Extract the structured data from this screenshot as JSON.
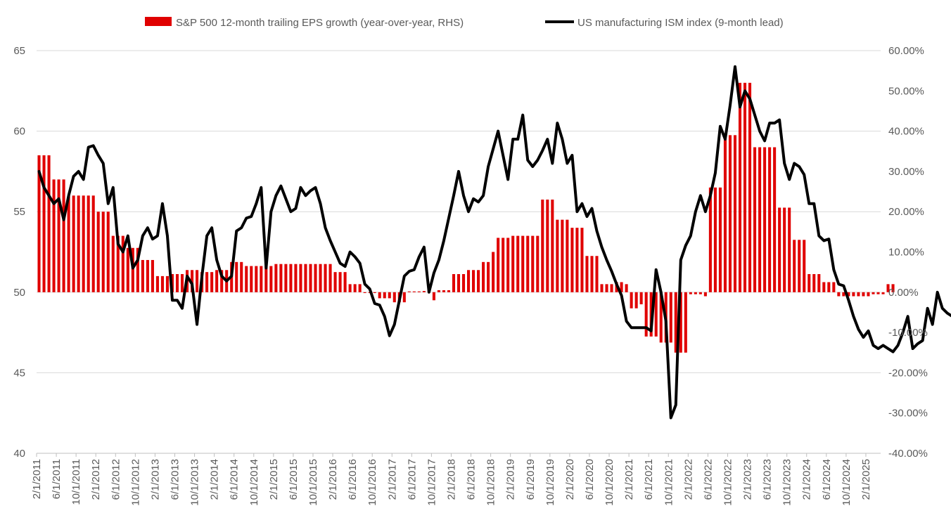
{
  "chart_data": {
    "type": "bar+line",
    "legend": {
      "placement": "top",
      "items": [
        {
          "label": "S&P 500 12-month trailing EPS growth (year-over-year, RHS)",
          "kind": "bar",
          "color": "#e00000"
        },
        {
          "label": "US manufacturing ISM index (9-month lead)",
          "kind": "line",
          "color": "#000000"
        }
      ]
    },
    "grid": true,
    "left_axis": {
      "ylim": [
        40,
        65
      ],
      "ticks": [
        "40",
        "45",
        "50",
        "55",
        "60",
        "65"
      ]
    },
    "right_axis": {
      "ylim": [
        -0.4,
        0.6
      ],
      "ticks": [
        "-40.00%",
        "-30.00%",
        "-20.00%",
        "-10.00%",
        "0.00%",
        "10.00%",
        "20.00%",
        "30.00%",
        "40.00%",
        "50.00%",
        "60.00%"
      ]
    },
    "x_start": "2011-02",
    "x_end": "2025-04",
    "x_tick_labels": [
      "2/1/2011",
      "6/1/2011",
      "10/1/2011",
      "2/1/2012",
      "6/1/2012",
      "10/1/2012",
      "2/1/2013",
      "6/1/2013",
      "10/1/2013",
      "2/1/2014",
      "6/1/2014",
      "10/1/2014",
      "2/1/2015",
      "6/1/2015",
      "10/1/2015",
      "2/1/2016",
      "6/1/2016",
      "10/1/2016",
      "2/1/2017",
      "6/1/2017",
      "10/1/2017",
      "2/1/2018",
      "6/1/2018",
      "10/1/2018",
      "2/1/2019",
      "6/1/2019",
      "10/1/2019",
      "2/1/2020",
      "6/1/2020",
      "10/1/2020",
      "2/1/2021",
      "6/1/2021",
      "10/1/2021",
      "2/1/2022",
      "6/1/2022",
      "10/1/2022",
      "2/1/2023",
      "6/1/2023",
      "10/1/2023",
      "2/1/2024",
      "6/1/2024",
      "10/1/2024",
      "2/1/2025"
    ],
    "series": [
      {
        "name": "S&P 500 12-month trailing EPS growth (year-over-year, RHS)",
        "type": "bar",
        "axis": "right",
        "values": [
          0.34,
          0.34,
          0.34,
          0.28,
          0.28,
          0.28,
          0.24,
          0.24,
          0.24,
          0.24,
          0.24,
          0.24,
          0.2,
          0.2,
          0.2,
          0.14,
          0.14,
          0.14,
          0.11,
          0.11,
          0.11,
          0.08,
          0.08,
          0.08,
          0.04,
          0.04,
          0.04,
          0.045,
          0.045,
          0.045,
          0.055,
          0.055,
          0.055,
          0.05,
          0.05,
          0.05,
          0.055,
          0.055,
          0.055,
          0.075,
          0.075,
          0.075,
          0.065,
          0.065,
          0.065,
          0.065,
          0.065,
          0.065,
          0.07,
          0.07,
          0.07,
          0.07,
          0.07,
          0.07,
          0.07,
          0.07,
          0.07,
          0.07,
          0.07,
          0.07,
          0.05,
          0.05,
          0.05,
          0.02,
          0.02,
          0.02,
          -0.002,
          -0.002,
          -0.002,
          -0.015,
          -0.015,
          -0.015,
          -0.025,
          -0.025,
          -0.025,
          0.002,
          0.002,
          0.002,
          0.003,
          0.003,
          -0.02,
          0.005,
          0.005,
          0.005,
          0.045,
          0.045,
          0.045,
          0.055,
          0.055,
          0.055,
          0.075,
          0.075,
          0.1,
          0.135,
          0.135,
          0.135,
          0.14,
          0.14,
          0.14,
          0.14,
          0.14,
          0.14,
          0.23,
          0.23,
          0.23,
          0.18,
          0.18,
          0.18,
          0.16,
          0.16,
          0.16,
          0.09,
          0.09,
          0.09,
          0.02,
          0.02,
          0.02,
          0.025,
          0.025,
          0.02,
          -0.04,
          -0.04,
          -0.03,
          -0.11,
          -0.11,
          -0.11,
          -0.125,
          -0.125,
          -0.125,
          -0.15,
          -0.15,
          -0.15,
          -0.005,
          -0.005,
          -0.005,
          -0.01,
          0.26,
          0.26,
          0.26,
          0.39,
          0.39,
          0.39,
          0.52,
          0.52,
          0.52,
          0.36,
          0.36,
          0.36,
          0.36,
          0.36,
          0.21,
          0.21,
          0.21,
          0.13,
          0.13,
          0.13,
          0.045,
          0.045,
          0.045,
          0.025,
          0.025,
          0.025,
          -0.01,
          -0.01,
          -0.01,
          -0.01,
          -0.01,
          -0.01,
          -0.01,
          -0.005,
          -0.005,
          -0.005,
          0.02,
          0.02,
          null,
          null,
          null,
          null,
          null,
          null,
          null,
          null,
          null
        ]
      },
      {
        "name": "US manufacturing ISM index (9-month lead)",
        "type": "line",
        "axis": "left",
        "values": [
          57.5,
          56.5,
          56,
          55.5,
          55.8,
          54.5,
          56,
          57.2,
          57.5,
          57,
          59,
          59.1,
          58.5,
          58,
          55.5,
          56.5,
          53,
          52.5,
          53.5,
          51.5,
          52,
          53.5,
          54,
          53.3,
          53.5,
          55.5,
          53.5,
          49.5,
          49.5,
          49,
          51,
          50.5,
          48,
          51,
          53.5,
          54,
          52,
          51,
          50.7,
          51,
          53.8,
          54,
          54.6,
          54.7,
          55.5,
          56.5,
          51.5,
          55,
          56,
          56.6,
          55.8,
          55,
          55.2,
          56.5,
          56,
          56.3,
          56.5,
          55.5,
          54,
          53.2,
          52.5,
          51.8,
          51.6,
          52.5,
          52.2,
          51.8,
          50.5,
          50.2,
          49.3,
          49.2,
          48.5,
          47.3,
          48,
          49.5,
          51,
          51.3,
          51.4,
          52.2,
          52.8,
          50,
          51.2,
          52,
          53.2,
          54.6,
          56,
          57.5,
          56,
          55,
          55.8,
          55.6,
          56,
          57.8,
          58.9,
          60,
          58.5,
          57,
          59.5,
          59.5,
          61,
          58.2,
          57.8,
          58.2,
          58.8,
          59.5,
          58,
          60.5,
          59.5,
          58,
          58.5,
          55,
          55.5,
          54.7,
          55.2,
          53.8,
          52.8,
          52,
          51.3,
          50.5,
          49.8,
          48.2,
          47.8,
          47.8,
          47.8,
          47.8,
          47.6,
          51.4,
          50,
          48.2,
          42.2,
          43,
          52,
          52.9,
          53.5,
          55,
          56,
          55,
          56,
          57.4,
          60.3,
          59.5,
          61.6,
          64,
          61.5,
          62.5,
          62,
          61,
          60,
          59.4,
          60.5,
          60.5,
          60.7,
          58,
          57,
          58,
          57.8,
          57.3,
          55.5,
          55.5,
          53.5,
          53.2,
          53.3,
          51.4,
          50.5,
          50.4,
          49.5,
          48.5,
          47.7,
          47.2,
          47.6,
          46.7,
          46.5,
          46.7,
          46.5,
          46.3,
          46.7,
          47.5,
          48.5,
          46.5,
          46.8,
          47,
          49,
          48,
          50,
          49,
          48.7,
          48.5
        ]
      }
    ]
  }
}
